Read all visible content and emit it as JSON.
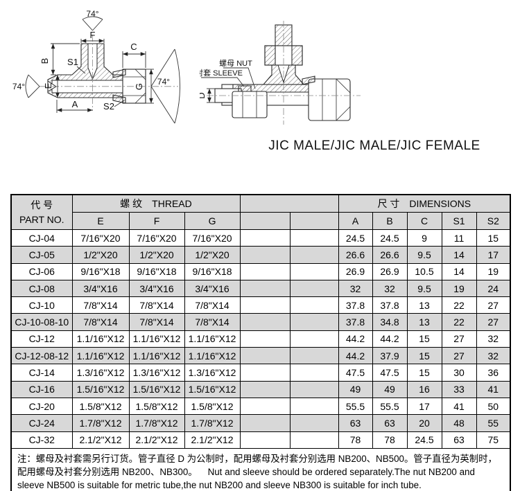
{
  "title": "JIC MALE/JIC MALE/JIC FEMALE",
  "drawings": {
    "left": {
      "angle_top": "74°",
      "angle_left": "74°",
      "angle_right": "74°",
      "f": "F",
      "b": "B",
      "c": "C",
      "e": "E",
      "g": "G",
      "a": "A",
      "s1": "S1",
      "s2": "S2"
    },
    "right": {
      "nut": "螺母 NUT",
      "sleeve": "衬套 SLEEVE",
      "d": "D"
    }
  },
  "table": {
    "header": {
      "part_cn": "代  号",
      "part_en": "PART NO.",
      "thread_cn": "螺 纹",
      "thread_en": "THREAD",
      "dims_cn": "尺 寸",
      "dims_en": "DIMENSIONS",
      "thread_cols": [
        "E",
        "F",
        "G"
      ],
      "dim_cols": [
        "A",
        "B",
        "C",
        "S1",
        "S2"
      ]
    },
    "rows": [
      [
        "CJ-04",
        "7/16\"X20",
        "7/16\"X20",
        "7/16\"X20",
        "",
        "",
        "24.5",
        "24.5",
        "9",
        "11",
        "15"
      ],
      [
        "CJ-05",
        "1/2\"X20",
        "1/2\"X20",
        "1/2\"X20",
        "",
        "",
        "26.6",
        "26.6",
        "9.5",
        "14",
        "17"
      ],
      [
        "CJ-06",
        "9/16\"X18",
        "9/16\"X18",
        "9/16\"X18",
        "",
        "",
        "26.9",
        "26.9",
        "10.5",
        "14",
        "19"
      ],
      [
        "CJ-08",
        "3/4\"X16",
        "3/4\"X16",
        "3/4\"X16",
        "",
        "",
        "32",
        "32",
        "9.5",
        "19",
        "24"
      ],
      [
        "CJ-10",
        "7/8\"X14",
        "7/8\"X14",
        "7/8\"X14",
        "",
        "",
        "37.8",
        "37.8",
        "13",
        "22",
        "27"
      ],
      [
        "CJ-10-08-10",
        "7/8\"X14",
        "7/8\"X14",
        "7/8\"X14",
        "",
        "",
        "37.8",
        "34.8",
        "13",
        "22",
        "27"
      ],
      [
        "CJ-12",
        "1.1/16\"X12",
        "1.1/16\"X12",
        "1.1/16\"X12",
        "",
        "",
        "44.2",
        "44.2",
        "15",
        "27",
        "32"
      ],
      [
        "CJ-12-08-12",
        "1.1/16\"X12",
        "1.1/16\"X12",
        "1.1/16\"X12",
        "",
        "",
        "44.2",
        "37.9",
        "15",
        "27",
        "32"
      ],
      [
        "CJ-14",
        "1.3/16\"X12",
        "1.3/16\"X12",
        "1.3/16\"X12",
        "",
        "",
        "47.5",
        "47.5",
        "15",
        "30",
        "36"
      ],
      [
        "CJ-16",
        "1.5/16\"X12",
        "1.5/16\"X12",
        "1.5/16\"X12",
        "",
        "",
        "49",
        "49",
        "16",
        "33",
        "41"
      ],
      [
        "CJ-20",
        "1.5/8\"X12",
        "1.5/8\"X12",
        "1.5/8\"X12",
        "",
        "",
        "55.5",
        "55.5",
        "17",
        "41",
        "50"
      ],
      [
        "CJ-24",
        "1.7/8\"X12",
        "1.7/8\"X12",
        "1.7/8\"X12",
        "",
        "",
        "63",
        "63",
        "20",
        "48",
        "55"
      ],
      [
        "CJ-32",
        "2.1/2\"X12",
        "2.1/2\"X12",
        "2.1/2\"X12",
        "",
        "",
        "78",
        "78",
        "24.5",
        "63",
        "75"
      ]
    ]
  },
  "note": "注：螺母及衬套需另行订货。管子直径 D 为公制时，配用螺母及衬套分别选用 NB200、NB500。管子直径为英制时，配用螺母及衬套分别选用 NB200、NB300。    Nut and sleeve should be ordered separately.The nut NB200 and sleeve NB500 is suitable for metric tube,the nut NB200 and sleeve NB300 is suitable for inch tube.",
  "colors": {
    "row_shade": "#d8d8d8",
    "line": "#000000",
    "background": "#ffffff"
  }
}
